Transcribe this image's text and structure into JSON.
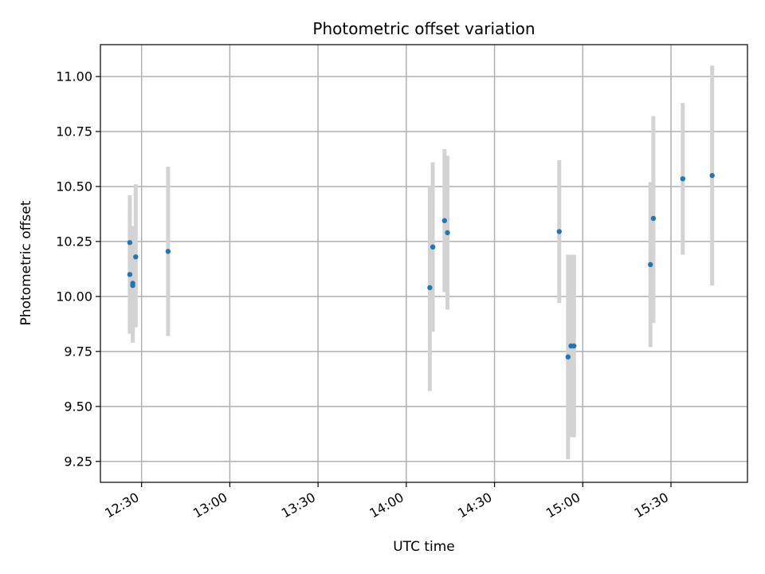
{
  "chart_data": {
    "type": "scatter",
    "title": "Photometric offset variation",
    "xlabel": "UTC time",
    "ylabel": "Photometric offset",
    "x_axis_type": "time",
    "xlim": [
      "12:16",
      "15:56"
    ],
    "ylim": [
      9.155,
      11.145
    ],
    "x_ticks": [
      "12:30",
      "13:00",
      "13:30",
      "14:00",
      "14:30",
      "15:00",
      "15:30"
    ],
    "y_ticks": [
      9.25,
      9.5,
      9.75,
      10.0,
      10.25,
      10.5,
      10.75,
      11.0
    ],
    "y_tick_labels": [
      "9.25",
      "9.50",
      "9.75",
      "10.00",
      "10.25",
      "10.50",
      "10.75",
      "11.00"
    ],
    "grid": true,
    "series": [
      {
        "point_color": "#1f77b4",
        "error_color": "#d3d3d3",
        "points": [
          {
            "time": "12:26",
            "y": 10.245,
            "err_low": 9.83,
            "err_high": 10.46
          },
          {
            "time": "12:26",
            "y": 10.1,
            "err_low": 9.84,
            "err_high": 10.37
          },
          {
            "time": "12:27",
            "y": 10.06,
            "err_low": 9.79,
            "err_high": 10.32
          },
          {
            "time": "12:27",
            "y": 10.05,
            "err_low": 9.8,
            "err_high": 10.31
          },
          {
            "time": "12:28",
            "y": 10.18,
            "err_low": 9.86,
            "err_high": 10.51
          },
          {
            "time": "12:39",
            "y": 10.205,
            "err_low": 9.82,
            "err_high": 10.59
          },
          {
            "time": "14:08",
            "y": 10.04,
            "err_low": 9.57,
            "err_high": 10.5
          },
          {
            "time": "14:09",
            "y": 10.225,
            "err_low": 9.84,
            "err_high": 10.61
          },
          {
            "time": "14:13",
            "y": 10.345,
            "err_low": 10.02,
            "err_high": 10.67
          },
          {
            "time": "14:14",
            "y": 10.29,
            "err_low": 9.94,
            "err_high": 10.64
          },
          {
            "time": "14:52",
            "y": 10.295,
            "err_low": 9.97,
            "err_high": 10.62
          },
          {
            "time": "14:55",
            "y": 9.725,
            "err_low": 9.26,
            "err_high": 10.19
          },
          {
            "time": "14:56",
            "y": 9.775,
            "err_low": 9.36,
            "err_high": 10.19
          },
          {
            "time": "14:57",
            "y": 9.775,
            "err_low": 9.36,
            "err_high": 10.19
          },
          {
            "time": "15:23",
            "y": 10.145,
            "err_low": 9.77,
            "err_high": 10.52
          },
          {
            "time": "15:24",
            "y": 10.355,
            "err_low": 9.88,
            "err_high": 10.82
          },
          {
            "time": "15:34",
            "y": 10.535,
            "err_low": 10.19,
            "err_high": 10.88
          },
          {
            "time": "15:44",
            "y": 10.55,
            "err_low": 10.05,
            "err_high": 11.05
          }
        ]
      }
    ]
  }
}
